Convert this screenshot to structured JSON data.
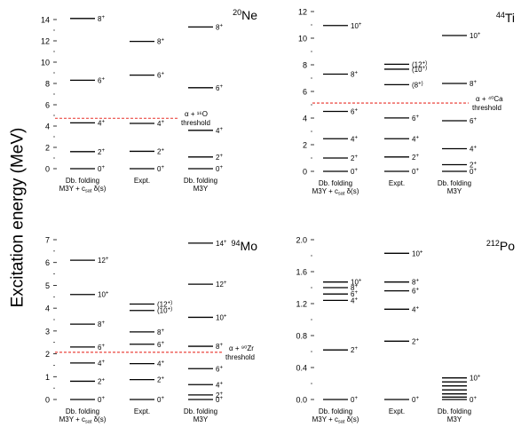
{
  "ylabel": "Excitation energy (MeV)",
  "chart_data": [
    {
      "type": "level-scheme",
      "nucleus": {
        "mass": "20",
        "symbol": "Ne"
      },
      "ylim": [
        0,
        15
      ],
      "yticks": [
        0,
        2,
        4,
        6,
        8,
        10,
        12,
        14
      ],
      "tick_decimals": 0,
      "columns": [
        {
          "label": [
            "Db. folding",
            "M3Y + c_sat δ(s)"
          ],
          "levels": [
            {
              "E": 0,
              "J": "0",
              "p": "+"
            },
            {
              "E": 1.6,
              "J": "2",
              "p": "+"
            },
            {
              "E": 4.3,
              "J": "4",
              "p": "+"
            },
            {
              "E": 8.3,
              "J": "6",
              "p": "+"
            },
            {
              "E": 14.1,
              "J": "8",
              "p": "+"
            }
          ]
        },
        {
          "label": [
            "Expt."
          ],
          "levels": [
            {
              "E": 0,
              "J": "0",
              "p": "+"
            },
            {
              "E": 1.63,
              "J": "2",
              "p": "+"
            },
            {
              "E": 4.25,
              "J": "4",
              "p": "+"
            },
            {
              "E": 8.78,
              "J": "6",
              "p": "+"
            },
            {
              "E": 11.95,
              "J": "8",
              "p": "+"
            }
          ]
        },
        {
          "label": [
            "Db. folding",
            "M3Y"
          ],
          "levels": [
            {
              "E": 0,
              "J": "0",
              "p": "+"
            },
            {
              "E": 1.1,
              "J": "2",
              "p": "+"
            },
            {
              "E": 3.6,
              "J": "4",
              "p": "+"
            },
            {
              "E": 7.6,
              "J": "6",
              "p": "+"
            },
            {
              "E": 13.3,
              "J": "8",
              "p": "+"
            }
          ]
        }
      ],
      "threshold": {
        "E": 4.73,
        "text": [
          "α + ¹⁶O",
          "threshold"
        ]
      }
    },
    {
      "type": "level-scheme",
      "nucleus": {
        "mass": "44",
        "symbol": "Ti"
      },
      "ylim": [
        0,
        12
      ],
      "yticks": [
        0,
        2,
        4,
        6,
        8,
        10,
        12
      ],
      "tick_decimals": 0,
      "columns": [
        {
          "label": [
            "Db. folding",
            "M3Y + c_sat δ(s)"
          ],
          "levels": [
            {
              "E": 0,
              "J": "0",
              "p": "+"
            },
            {
              "E": 1.0,
              "J": "2",
              "p": "+"
            },
            {
              "E": 2.45,
              "J": "4",
              "p": "+"
            },
            {
              "E": 4.5,
              "J": "6",
              "p": "+"
            },
            {
              "E": 7.3,
              "J": "8",
              "p": "+"
            },
            {
              "E": 10.95,
              "J": "10",
              "p": "+"
            }
          ]
        },
        {
          "label": [
            "Expt."
          ],
          "levels": [
            {
              "E": 0,
              "J": "0",
              "p": "+"
            },
            {
              "E": 1.08,
              "J": "2",
              "p": "+"
            },
            {
              "E": 2.45,
              "J": "4",
              "p": "+"
            },
            {
              "E": 4.01,
              "J": "6",
              "p": "+"
            },
            {
              "E": 6.51,
              "J": "(8",
              "p": "+)"
            },
            {
              "E": 7.67,
              "J": "(10",
              "p": "+)"
            },
            {
              "E": 8.04,
              "J": "(12",
              "p": "+)"
            }
          ]
        },
        {
          "label": [
            "Db. folding",
            "M3Y"
          ],
          "levels": [
            {
              "E": 0,
              "J": "0",
              "p": "+"
            },
            {
              "E": 0.5,
              "J": "2",
              "p": "+"
            },
            {
              "E": 1.7,
              "J": "4",
              "p": "+"
            },
            {
              "E": 3.8,
              "J": "6",
              "p": "+"
            },
            {
              "E": 6.6,
              "J": "8",
              "p": "+"
            },
            {
              "E": 10.2,
              "J": "10",
              "p": "+"
            }
          ]
        }
      ],
      "threshold": {
        "E": 5.13,
        "text": [
          "α + ⁴⁰Ca",
          "threshold"
        ]
      }
    },
    {
      "type": "level-scheme",
      "nucleus": {
        "mass": "94",
        "symbol": "Mo"
      },
      "ylim": [
        0,
        7
      ],
      "yticks": [
        0,
        1,
        2,
        3,
        4,
        5,
        6,
        7
      ],
      "tick_decimals": 0,
      "columns": [
        {
          "label": [
            "Db. folding",
            "M3Y + c_sat δ(s)"
          ],
          "levels": [
            {
              "E": 0,
              "J": "0",
              "p": "+"
            },
            {
              "E": 0.8,
              "J": "2",
              "p": "+"
            },
            {
              "E": 1.6,
              "J": "4",
              "p": "+"
            },
            {
              "E": 2.3,
              "J": "6",
              "p": "+"
            },
            {
              "E": 3.3,
              "J": "8",
              "p": "+"
            },
            {
              "E": 4.6,
              "J": "10",
              "p": "+"
            },
            {
              "E": 6.1,
              "J": "12",
              "p": "+"
            }
          ]
        },
        {
          "label": [
            "Expt."
          ],
          "levels": [
            {
              "E": 0,
              "J": "0",
              "p": "+"
            },
            {
              "E": 0.87,
              "J": "2",
              "p": "+"
            },
            {
              "E": 1.57,
              "J": "4",
              "p": "+"
            },
            {
              "E": 2.42,
              "J": "6",
              "p": "+"
            },
            {
              "E": 2.96,
              "J": "8",
              "p": "+"
            },
            {
              "E": 3.9,
              "J": "(10",
              "p": "+)"
            },
            {
              "E": 4.18,
              "J": "(12",
              "p": "+)"
            }
          ]
        },
        {
          "label": [
            "Db. folding",
            "M3Y"
          ],
          "levels": [
            {
              "E": 0,
              "J": "0",
              "p": "+"
            },
            {
              "E": 0.2,
              "J": "2",
              "p": "+"
            },
            {
              "E": 0.65,
              "J": "4",
              "p": "+"
            },
            {
              "E": 1.35,
              "J": "6",
              "p": "+"
            },
            {
              "E": 2.33,
              "J": "8",
              "p": "+"
            },
            {
              "E": 3.6,
              "J": "10",
              "p": "+"
            },
            {
              "E": 5.05,
              "J": "12",
              "p": "+"
            },
            {
              "E": 6.85,
              "J": "14",
              "p": "+"
            }
          ]
        }
      ],
      "threshold": {
        "E": 2.07,
        "text": [
          "α + ⁹⁰Zr",
          "threshold"
        ]
      }
    },
    {
      "type": "level-scheme",
      "nucleus": {
        "mass": "212",
        "symbol": "Po"
      },
      "ylim": [
        0,
        2.0
      ],
      "yticks": [
        0.0,
        0.4,
        0.8,
        1.2,
        1.6,
        2.0
      ],
      "tick_decimals": 1,
      "columns": [
        {
          "label": [
            "Db. folding",
            "M3Y + c_sat δ(s)"
          ],
          "levels": [
            {
              "E": 0,
              "J": "0",
              "p": "+"
            },
            {
              "E": 0.62,
              "J": "2",
              "p": "+"
            },
            {
              "E": 1.24,
              "J": "4",
              "p": "+"
            },
            {
              "E": 1.32,
              "J": "6",
              "p": "+"
            },
            {
              "E": 1.4,
              "J": "8",
              "p": "+"
            },
            {
              "E": 1.47,
              "J": "10",
              "p": "+"
            }
          ]
        },
        {
          "label": [
            "Expt."
          ],
          "levels": [
            {
              "E": 0,
              "J": "0",
              "p": "+"
            },
            {
              "E": 0.73,
              "J": "2",
              "p": "+"
            },
            {
              "E": 1.13,
              "J": "4",
              "p": "+"
            },
            {
              "E": 1.36,
              "J": "6",
              "p": "+"
            },
            {
              "E": 1.47,
              "J": "8",
              "p": "+"
            },
            {
              "E": 1.83,
              "J": "10",
              "p": "+"
            }
          ]
        },
        {
          "label": [
            "Db. folding",
            "M3Y"
          ],
          "levels": [
            {
              "E": 0,
              "J": "0",
              "p": "+",
              "show": true
            },
            {
              "E": 0.03,
              "J": "",
              "p": ""
            },
            {
              "E": 0.07,
              "J": "",
              "p": ""
            },
            {
              "E": 0.12,
              "J": "",
              "p": ""
            },
            {
              "E": 0.17,
              "J": "",
              "p": ""
            },
            {
              "E": 0.22,
              "J": "",
              "p": ""
            },
            {
              "E": 0.27,
              "J": "10",
              "p": "+"
            }
          ]
        }
      ]
    }
  ],
  "colors": {
    "threshold": "#e8322a",
    "level": "#000000"
  }
}
